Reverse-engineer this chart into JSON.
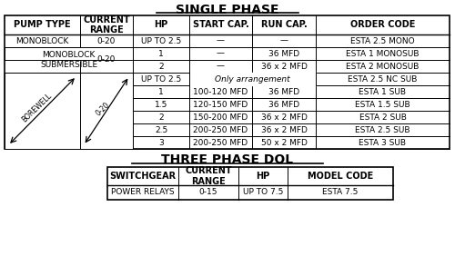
{
  "title1": "SINGLE PHASE",
  "title2": "THREE PHASE DOL",
  "sp_headers": [
    "PUMP TYPE",
    "CURRENT\nRANGE",
    "HP",
    "START CAP.",
    "RUN CAP.",
    "ORDER CODE"
  ],
  "tp_headers": [
    "SWITCHGEAR",
    "CURRENT\nRANGE",
    "HP",
    "MODEL CODE"
  ],
  "tp_rows": [
    [
      "POWER RELAYS",
      "0-15",
      "UP TO 7.5",
      "ESTA 7.5"
    ]
  ],
  "bg_color": "#ffffff",
  "line_color": "#000000",
  "text_color": "#000000",
  "font_size": 7.0
}
